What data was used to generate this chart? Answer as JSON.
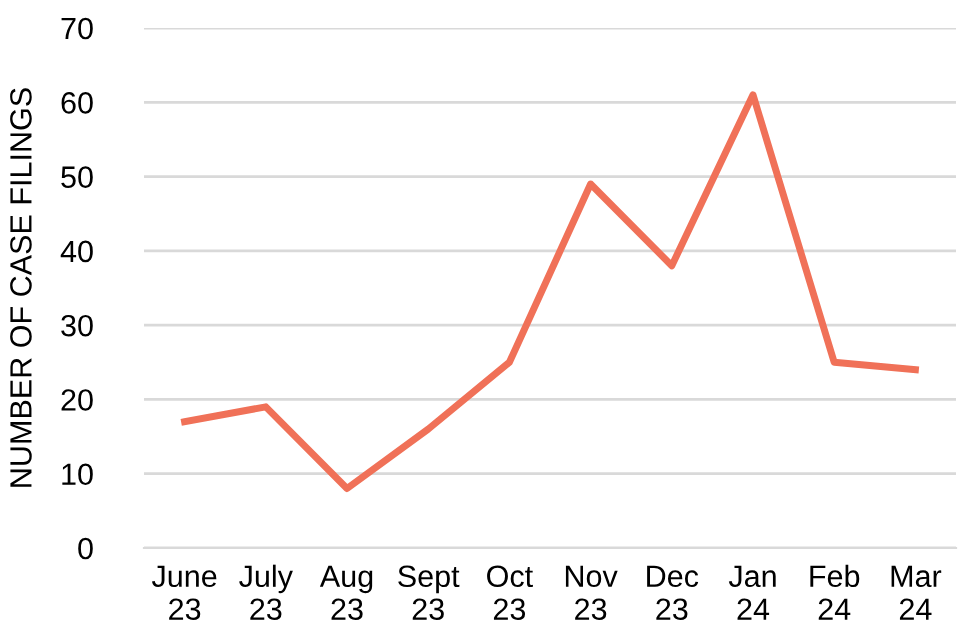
{
  "chart_data": {
    "type": "line",
    "ylabel": "NUMBER OF CASE FILINGS",
    "categories": [
      "June\n23",
      "July\n23",
      "Aug\n23",
      "Sept\n23",
      "Oct\n23",
      "Nov\n23",
      "Dec\n23",
      "Jan\n24",
      "Feb\n24",
      "Mar\n24"
    ],
    "values": [
      17,
      19,
      8,
      16,
      25,
      49,
      38,
      61,
      25,
      24
    ],
    "color": "#f07158",
    "ylim": [
      0,
      70
    ],
    "yticks": [
      0,
      10,
      20,
      30,
      40,
      50,
      60,
      70
    ],
    "grid": "y",
    "marker": "none",
    "line_style": "solid"
  }
}
